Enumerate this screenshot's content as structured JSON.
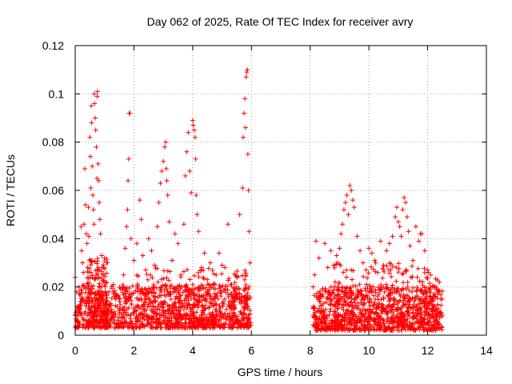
{
  "chart_data": {
    "type": "scatter",
    "title": "Day 062 of 2025, Rate Of TEC Index for receiver avry",
    "xlabel": "GPS time / hours",
    "ylabel": "ROTI / TECUs",
    "xlim": [
      0,
      14
    ],
    "ylim": [
      0,
      0.12
    ],
    "xticks": [
      0,
      2,
      4,
      6,
      8,
      10,
      12,
      14
    ],
    "xtick_labels": [
      "0",
      "2",
      "4",
      "6",
      "8",
      "10",
      "12",
      "14"
    ],
    "yticks": [
      0,
      0.02,
      0.04,
      0.06,
      0.08,
      0.1,
      0.12
    ],
    "ytick_labels": [
      "0",
      "0.02",
      "0.04",
      "0.06",
      "0.08",
      "0.1",
      "0.12"
    ],
    "grid": true,
    "marker": "plus",
    "color": "#ff0000",
    "series": [
      {
        "name": "ROTI",
        "points": [
          [
            0.0,
            0.024
          ],
          [
            0.05,
            0.018
          ],
          [
            0.08,
            0.012
          ],
          [
            0.1,
            0.008
          ],
          [
            0.12,
            0.02
          ],
          [
            0.15,
            0.01
          ],
          [
            0.18,
            0.014
          ],
          [
            0.2,
            0.045
          ],
          [
            0.22,
            0.035
          ],
          [
            0.25,
            0.03
          ],
          [
            0.28,
            0.026
          ],
          [
            0.3,
            0.046
          ],
          [
            0.3,
            0.02
          ],
          [
            0.33,
            0.069
          ],
          [
            0.35,
            0.054
          ],
          [
            0.38,
            0.042
          ],
          [
            0.4,
            0.038
          ],
          [
            0.42,
            0.028
          ],
          [
            0.45,
            0.053
          ],
          [
            0.47,
            0.041
          ],
          [
            0.5,
            0.082
          ],
          [
            0.52,
            0.074
          ],
          [
            0.53,
            0.061
          ],
          [
            0.55,
            0.095
          ],
          [
            0.56,
            0.088
          ],
          [
            0.58,
            0.07
          ],
          [
            0.6,
            0.058
          ],
          [
            0.62,
            0.052
          ],
          [
            0.64,
            0.046
          ],
          [
            0.65,
            0.1
          ],
          [
            0.66,
            0.096
          ],
          [
            0.68,
            0.09
          ],
          [
            0.7,
            0.085
          ],
          [
            0.72,
            0.078
          ],
          [
            0.74,
            0.065
          ],
          [
            0.75,
            0.099
          ],
          [
            0.76,
            0.101
          ],
          [
            0.78,
            0.071
          ],
          [
            0.8,
            0.064
          ],
          [
            0.82,
            0.055
          ],
          [
            0.84,
            0.048
          ],
          [
            0.86,
            0.042
          ],
          [
            0.9,
            0.033
          ],
          [
            0.92,
            0.028
          ],
          [
            0.95,
            0.025
          ],
          [
            1.0,
            0.032
          ],
          [
            1.05,
            0.022
          ],
          [
            1.1,
            0.03
          ],
          [
            1.15,
            0.018
          ],
          [
            1.2,
            0.013
          ],
          [
            1.3,
            0.021
          ],
          [
            1.4,
            0.017
          ],
          [
            1.5,
            0.015
          ],
          [
            1.6,
            0.019
          ],
          [
            1.65,
            0.025
          ],
          [
            1.7,
            0.036
          ],
          [
            1.75,
            0.045
          ],
          [
            1.78,
            0.052
          ],
          [
            1.8,
            0.064
          ],
          [
            1.82,
            0.073
          ],
          [
            1.84,
            0.092
          ],
          [
            1.86,
            0.092
          ],
          [
            1.9,
            0.04
          ],
          [
            2.0,
            0.031
          ],
          [
            2.1,
            0.038
          ],
          [
            2.2,
            0.056
          ],
          [
            2.25,
            0.048
          ],
          [
            2.3,
            0.033
          ],
          [
            2.4,
            0.027
          ],
          [
            2.5,
            0.04
          ],
          [
            2.6,
            0.035
          ],
          [
            2.7,
            0.029
          ],
          [
            2.8,
            0.045
          ],
          [
            2.85,
            0.055
          ],
          [
            2.9,
            0.063
          ],
          [
            2.95,
            0.068
          ],
          [
            3.0,
            0.072
          ],
          [
            3.05,
            0.078
          ],
          [
            3.08,
            0.08
          ],
          [
            3.1,
            0.069
          ],
          [
            3.12,
            0.064
          ],
          [
            3.15,
            0.058
          ],
          [
            3.2,
            0.047
          ],
          [
            3.3,
            0.031
          ],
          [
            3.4,
            0.042
          ],
          [
            3.5,
            0.038
          ],
          [
            3.6,
            0.025
          ],
          [
            3.7,
            0.046
          ],
          [
            3.75,
            0.066
          ],
          [
            3.8,
            0.076
          ],
          [
            3.85,
            0.084
          ],
          [
            3.9,
            0.068
          ],
          [
            3.95,
            0.059
          ],
          [
            4.0,
            0.089
          ],
          [
            4.02,
            0.087
          ],
          [
            4.05,
            0.085
          ],
          [
            4.08,
            0.082
          ],
          [
            4.1,
            0.073
          ],
          [
            4.12,
            0.058
          ],
          [
            4.15,
            0.05
          ],
          [
            4.2,
            0.043
          ],
          [
            4.3,
            0.028
          ],
          [
            4.4,
            0.034
          ],
          [
            4.5,
            0.023
          ],
          [
            4.6,
            0.03
          ],
          [
            4.7,
            0.021
          ],
          [
            4.8,
            0.025
          ],
          [
            4.9,
            0.034
          ],
          [
            5.0,
            0.029
          ],
          [
            5.1,
            0.028
          ],
          [
            5.2,
            0.046
          ],
          [
            5.3,
            0.021
          ],
          [
            5.4,
            0.018
          ],
          [
            5.5,
            0.024
          ],
          [
            5.6,
            0.05
          ],
          [
            5.7,
            0.061
          ],
          [
            5.72,
            0.082
          ],
          [
            5.75,
            0.092
          ],
          [
            5.78,
            0.098
          ],
          [
            5.8,
            0.086
          ],
          [
            5.82,
            0.107
          ],
          [
            5.84,
            0.109
          ],
          [
            5.86,
            0.11
          ],
          [
            5.88,
            0.075
          ],
          [
            5.9,
            0.06
          ],
          [
            5.92,
            0.043
          ],
          [
            5.95,
            0.03
          ],
          [
            8.1,
            0.02
          ],
          [
            8.15,
            0.025
          ],
          [
            8.2,
            0.039
          ],
          [
            8.3,
            0.032
          ],
          [
            8.5,
            0.038
          ],
          [
            8.6,
            0.028
          ],
          [
            8.7,
            0.035
          ],
          [
            8.8,
            0.029
          ],
          [
            8.9,
            0.033
          ],
          [
            9.0,
            0.036
          ],
          [
            9.05,
            0.042
          ],
          [
            9.1,
            0.046
          ],
          [
            9.15,
            0.052
          ],
          [
            9.2,
            0.055
          ],
          [
            9.25,
            0.058
          ],
          [
            9.3,
            0.05
          ],
          [
            9.35,
            0.062
          ],
          [
            9.4,
            0.06
          ],
          [
            9.45,
            0.056
          ],
          [
            9.5,
            0.053
          ],
          [
            9.6,
            0.041
          ],
          [
            9.7,
            0.035
          ],
          [
            9.8,
            0.03
          ],
          [
            9.9,
            0.027
          ],
          [
            10.0,
            0.036
          ],
          [
            10.1,
            0.034
          ],
          [
            10.2,
            0.031
          ],
          [
            10.3,
            0.026
          ],
          [
            10.4,
            0.039
          ],
          [
            10.5,
            0.029
          ],
          [
            10.6,
            0.035
          ],
          [
            10.7,
            0.038
          ],
          [
            10.8,
            0.041
          ],
          [
            10.9,
            0.049
          ],
          [
            10.95,
            0.053
          ],
          [
            11.0,
            0.047
          ],
          [
            11.05,
            0.045
          ],
          [
            11.1,
            0.041
          ],
          [
            11.15,
            0.052
          ],
          [
            11.2,
            0.057
          ],
          [
            11.25,
            0.055
          ],
          [
            11.3,
            0.049
          ],
          [
            11.35,
            0.043
          ],
          [
            11.4,
            0.037
          ],
          [
            11.5,
            0.031
          ],
          [
            11.6,
            0.045
          ],
          [
            11.7,
            0.039
          ],
          [
            11.75,
            0.042
          ],
          [
            11.8,
            0.042
          ],
          [
            11.9,
            0.035
          ],
          [
            12.0,
            0.027
          ],
          [
            12.1,
            0.025
          ],
          [
            12.2,
            0.02
          ],
          [
            12.3,
            0.019
          ],
          [
            12.35,
            0.018
          ],
          [
            12.4,
            0.022
          ],
          [
            12.45,
            0.015
          ]
        ],
        "noise_bands": [
          {
            "x_start": 0.0,
            "x_end": 5.98,
            "y_min": 0.003,
            "y_max": 0.021,
            "count": 1100
          },
          {
            "x_start": 0.4,
            "x_end": 1.1,
            "y_min": 0.005,
            "y_max": 0.032,
            "count": 160
          },
          {
            "x_start": 2.0,
            "x_end": 5.98,
            "y_min": 0.004,
            "y_max": 0.028,
            "count": 250
          },
          {
            "x_start": 8.1,
            "x_end": 12.5,
            "y_min": 0.002,
            "y_max": 0.02,
            "count": 900
          },
          {
            "x_start": 8.8,
            "x_end": 12.4,
            "y_min": 0.005,
            "y_max": 0.03,
            "count": 260
          }
        ]
      }
    ]
  }
}
